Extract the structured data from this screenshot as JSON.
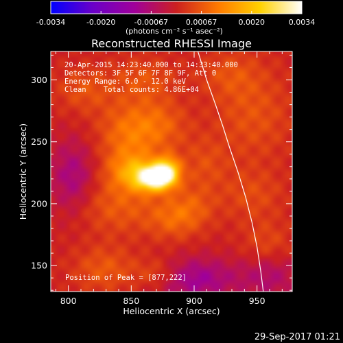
{
  "chart_data": {
    "type": "heatmap",
    "title": "Reconstructed RHESSI Image",
    "xlabel": "Heliocentric X (arcsec)",
    "ylabel": "Heliocentric Y (arcsec)",
    "xlim": [
      786,
      978
    ],
    "ylim": [
      129,
      323
    ],
    "x_ticks": [
      800,
      850,
      900,
      950
    ],
    "y_ticks": [
      150,
      200,
      250,
      300
    ],
    "colorbar": {
      "min": -0.0034,
      "max": 0.0034,
      "ticks": [
        "-0.0034",
        "-0.0020",
        "-0.00067",
        "0.00067",
        "0.0020",
        "0.0034"
      ],
      "unit": "(photons cm⁻² s⁻¹ asec⁻²)",
      "colormap": [
        "#0000ff",
        "#6a00c8",
        "#a0009a",
        "#cc2020",
        "#ff7a00",
        "#ffd100",
        "#ffffff"
      ]
    },
    "annotations": [
      "20-Apr-2015 14:23:40.000 to 14:33:40.000",
      "Detectors: 3F 5F 6F 7F 8F 9F, Att 0",
      "Energy Range: 6.0 - 12.0 keV",
      "Clean    Total counts: 4.86E+04"
    ],
    "peak_label": "Position of Peak = [877,222]",
    "peak_position": [
      877,
      222
    ],
    "sources": [
      {
        "x": 869,
        "y": 221,
        "sx": 10,
        "sy": 7,
        "amp": 0.0034
      },
      {
        "x": 879,
        "y": 227,
        "sx": 7,
        "sy": 8,
        "amp": 0.002
      },
      {
        "x": 852,
        "y": 226,
        "sx": 14,
        "sy": 11,
        "amp": 0.0014
      },
      {
        "x": 846,
        "y": 256,
        "sx": 16,
        "sy": 18,
        "amp": 0.0009
      },
      {
        "x": 872,
        "y": 263,
        "sx": 16,
        "sy": 15,
        "amp": 0.0008
      },
      {
        "x": 840,
        "y": 198,
        "sx": 22,
        "sy": 16,
        "amp": 0.0007
      },
      {
        "x": 882,
        "y": 188,
        "sx": 14,
        "sy": 12,
        "amp": 0.0007
      },
      {
        "x": 813,
        "y": 292,
        "sx": 16,
        "sy": 13,
        "amp": 0.0006
      },
      {
        "x": 829,
        "y": 147,
        "sx": 18,
        "sy": 13,
        "amp": 0.0007
      },
      {
        "x": 871,
        "y": 143,
        "sx": 13,
        "sy": 9,
        "amp": 0.0007
      },
      {
        "x": 860,
        "y": 300,
        "sx": 18,
        "sy": 13,
        "amp": 0.0006
      },
      {
        "x": 947,
        "y": 272,
        "sx": 22,
        "sy": 26,
        "amp": 0.0006
      },
      {
        "x": 908,
        "y": 232,
        "sx": 13,
        "sy": 15,
        "amp": 0.0005
      },
      {
        "x": 899,
        "y": 197,
        "sx": 13,
        "sy": 13,
        "amp": 0.0006
      },
      {
        "x": 946,
        "y": 207,
        "sx": 18,
        "sy": 15,
        "amp": 0.0005
      },
      {
        "x": 958,
        "y": 167,
        "sx": 14,
        "sy": 13,
        "amp": 0.0005
      },
      {
        "x": 928,
        "y": 305,
        "sx": 17,
        "sy": 13,
        "amp": 0.0005
      },
      {
        "x": 803,
        "y": 222,
        "sx": 12,
        "sy": 20,
        "amp": -0.0009
      },
      {
        "x": 900,
        "y": 139,
        "sx": 24,
        "sy": 12,
        "amp": -0.0011
      },
      {
        "x": 960,
        "y": 142,
        "sx": 16,
        "sy": 13,
        "amp": -0.0007
      }
    ],
    "limb": [
      [
        903,
        323
      ],
      [
        910,
        300
      ],
      [
        917,
        280
      ],
      [
        923,
        262
      ],
      [
        928,
        246
      ],
      [
        935,
        225
      ],
      [
        941,
        205
      ],
      [
        946,
        185
      ],
      [
        950,
        165
      ],
      [
        953,
        145
      ],
      [
        955,
        129
      ]
    ]
  },
  "footer": {
    "timestamp": "29-Sep-2017 01:21"
  }
}
